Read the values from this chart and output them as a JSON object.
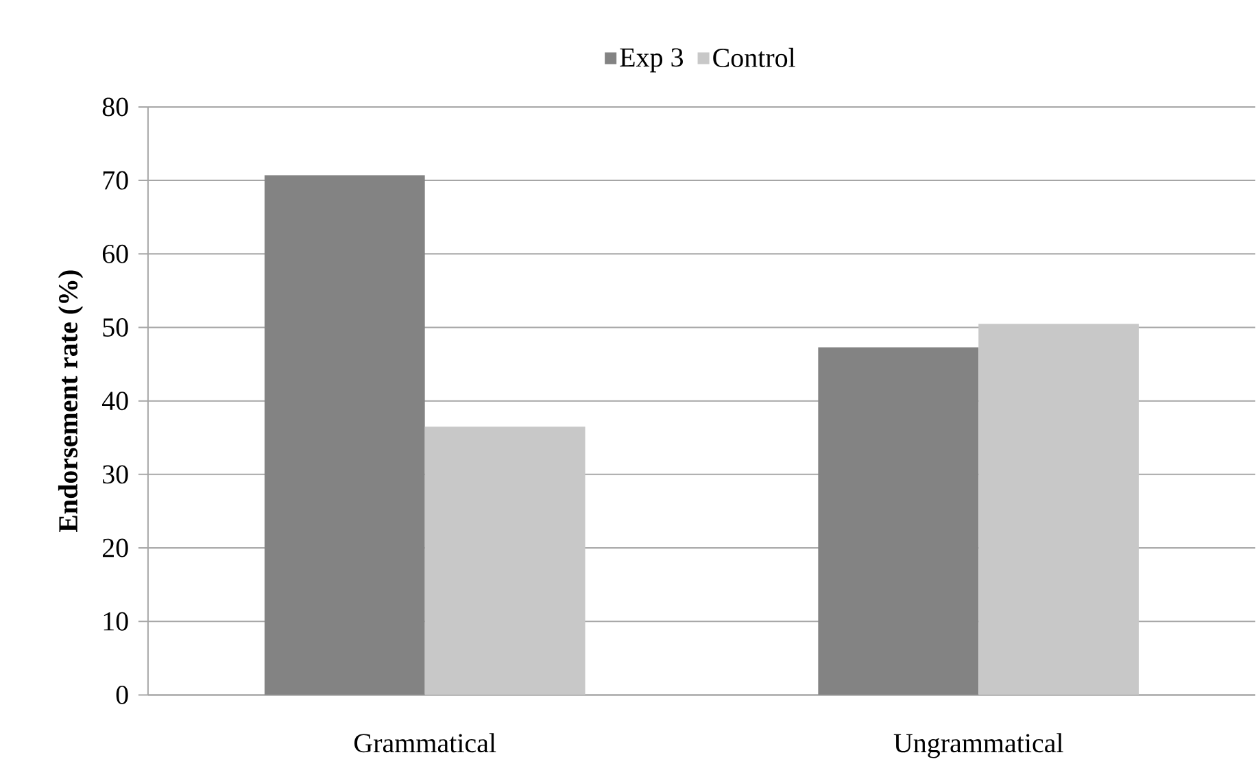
{
  "chart_data": {
    "type": "bar",
    "ylabel": "Endorsement rate (%)",
    "categories": [
      "Grammatical",
      "Ungrammatical"
    ],
    "series": [
      {
        "name": "Exp 3",
        "color": "#838383",
        "values": [
          70.7,
          47.3
        ]
      },
      {
        "name": "Control",
        "color": "#c8c8c8",
        "values": [
          36.5,
          50.5
        ]
      }
    ],
    "ylim": [
      0,
      80
    ],
    "yticks": [
      0,
      10,
      20,
      30,
      40,
      50,
      60,
      70,
      80
    ],
    "grid": "y",
    "legend": "top"
  }
}
